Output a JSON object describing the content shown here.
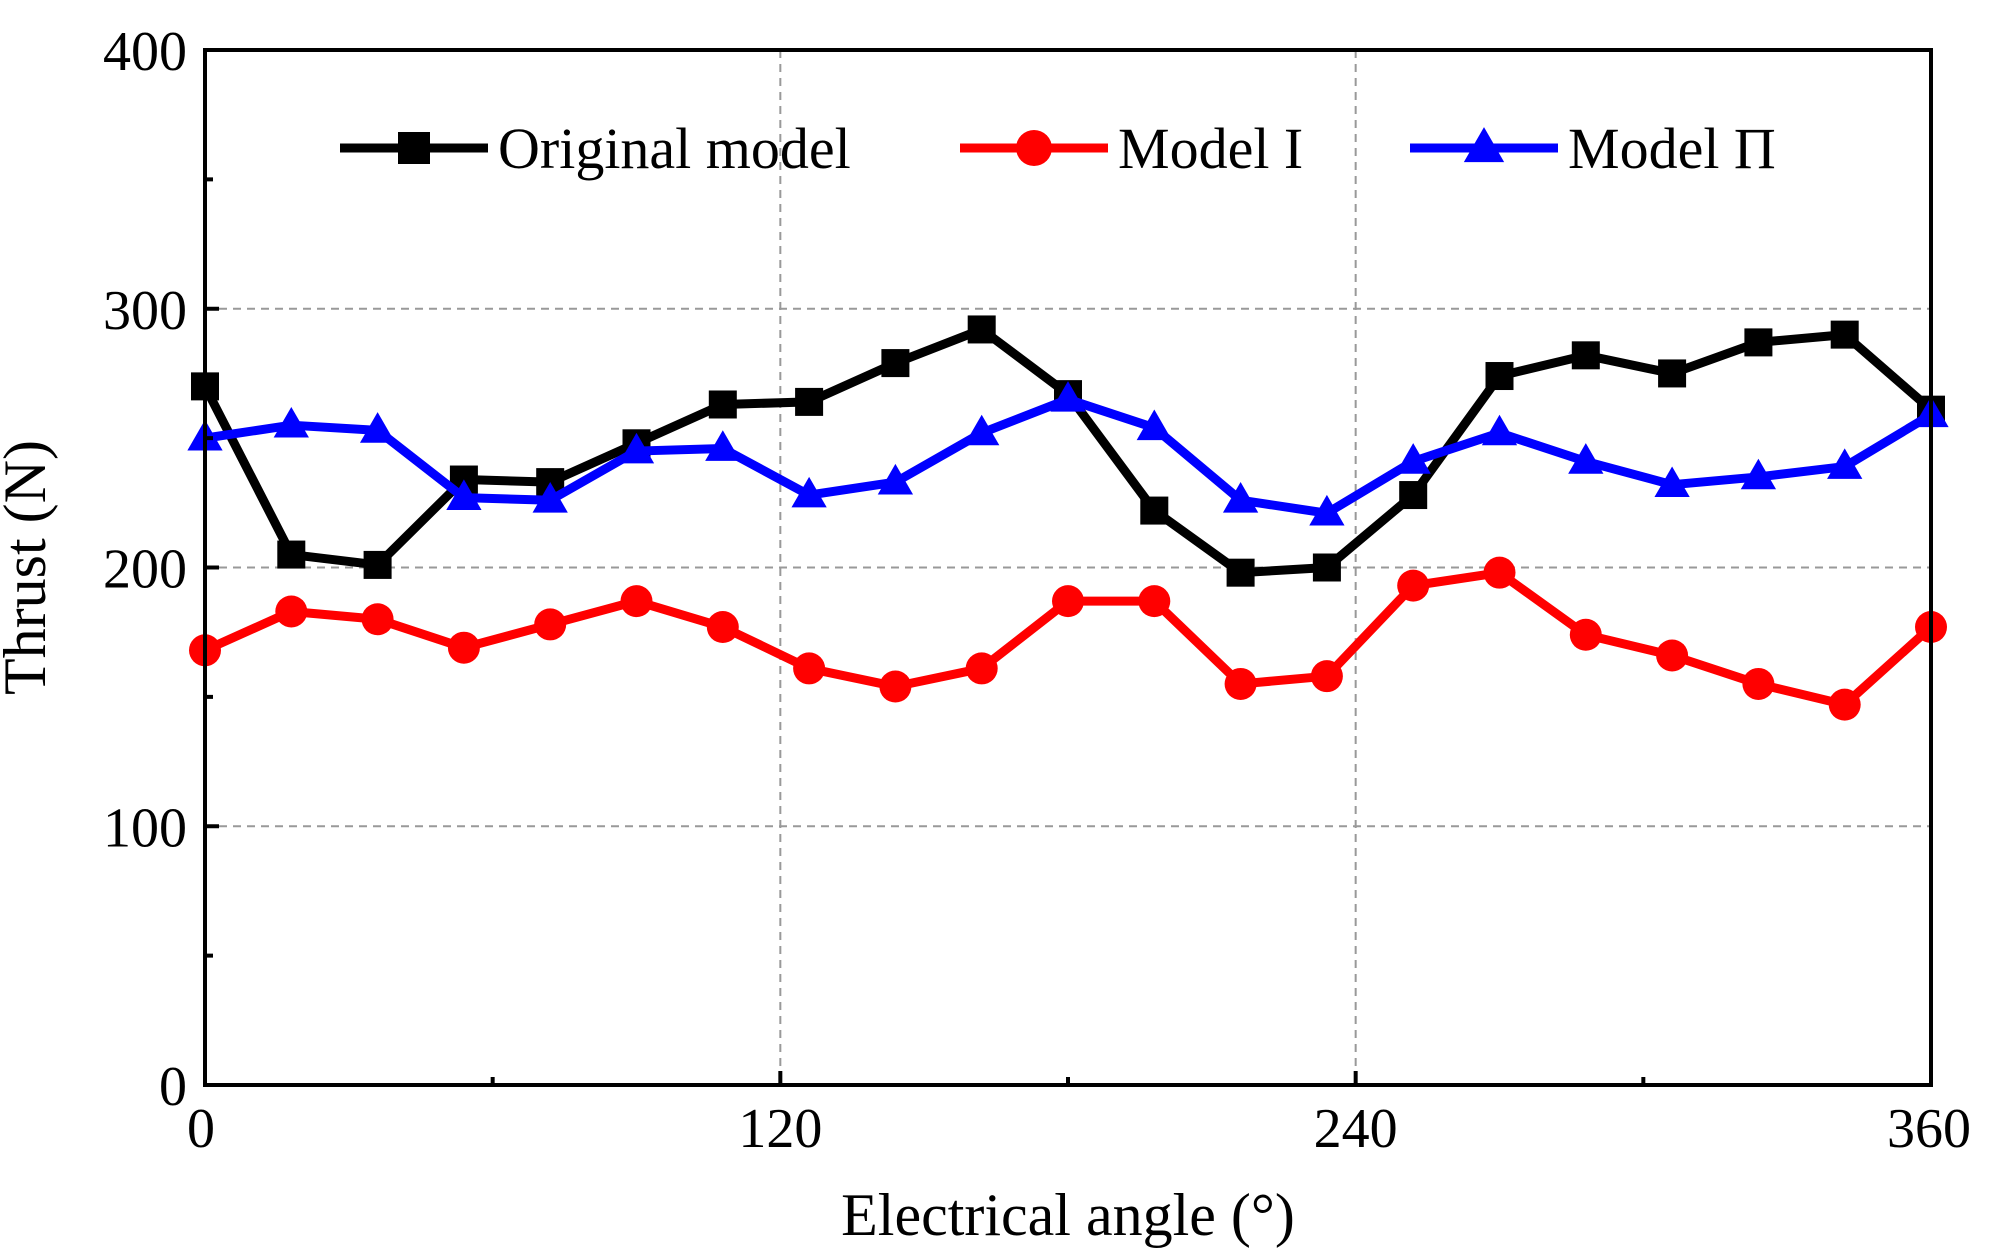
{
  "chart_data": {
    "type": "line",
    "xlabel": "Electrical angle (°)",
    "ylabel": "Thrust (N)",
    "xlim": [
      0,
      360
    ],
    "ylim": [
      0,
      400
    ],
    "x_ticks": [
      0,
      120,
      240,
      360
    ],
    "y_ticks": [
      0,
      100,
      200,
      300,
      400
    ],
    "grid": true,
    "legend_position": "top",
    "x": [
      0,
      18,
      36,
      54,
      72,
      90,
      108,
      126,
      144,
      162,
      180,
      198,
      216,
      234,
      252,
      270,
      288,
      306,
      324,
      342,
      360
    ],
    "series": [
      {
        "name": "Original model",
        "color": "#000000",
        "marker": "square",
        "values": [
          270,
          205,
          201,
          234,
          233,
          248,
          263,
          264,
          279,
          292,
          267,
          222,
          198,
          200,
          228,
          274,
          282,
          275,
          287,
          290,
          261
        ]
      },
      {
        "name": "Model I",
        "color": "#ff0000",
        "marker": "circle",
        "values": [
          168,
          183,
          180,
          169,
          178,
          187,
          177,
          161,
          154,
          161,
          187,
          187,
          155,
          158,
          193,
          198,
          174,
          166,
          155,
          147,
          177
        ]
      },
      {
        "name": "Model Π",
        "color": "#0000ff",
        "marker": "triangle",
        "values": [
          250,
          255,
          253,
          227,
          226,
          245,
          246,
          228,
          233,
          252,
          265,
          254,
          226,
          221,
          241,
          252,
          241,
          232,
          235,
          239,
          259
        ]
      }
    ]
  }
}
